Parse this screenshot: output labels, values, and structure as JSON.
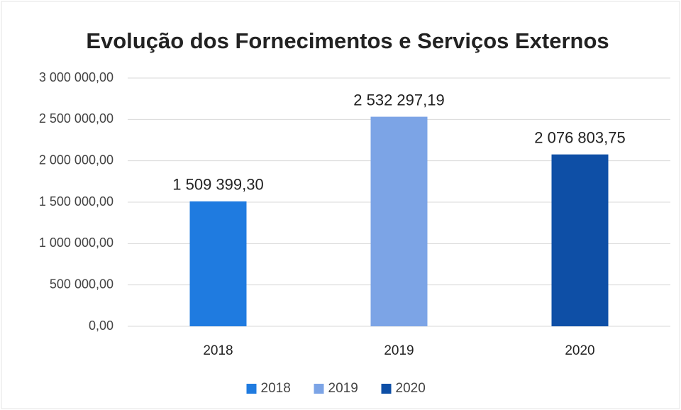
{
  "chart_data": {
    "type": "bar",
    "title": "Evolução dos Fornecimentos e Serviços Externos",
    "categories": [
      "2018",
      "2019",
      "2020"
    ],
    "values": [
      1509399.3,
      2532297.19,
      2076803.75
    ],
    "value_labels": [
      "1 509 399,30",
      "2 532 297,19",
      "2 076 803,75"
    ],
    "colors": [
      "#1f7be0",
      "#7ca4e6",
      "#0e4fa6"
    ],
    "ylim": [
      0,
      3000000
    ],
    "yticks": [
      {
        "value": 0,
        "label": "0,00"
      },
      {
        "value": 500000,
        "label": "500 000,00"
      },
      {
        "value": 1000000,
        "label": "1 000 000,00"
      },
      {
        "value": 1500000,
        "label": "1 500 000,00"
      },
      {
        "value": 2000000,
        "label": "2 000 000,00"
      },
      {
        "value": 2500000,
        "label": "2 500 000,00"
      },
      {
        "value": 3000000,
        "label": "3 000 000,00"
      }
    ],
    "grid": true,
    "legend": "bottom"
  }
}
